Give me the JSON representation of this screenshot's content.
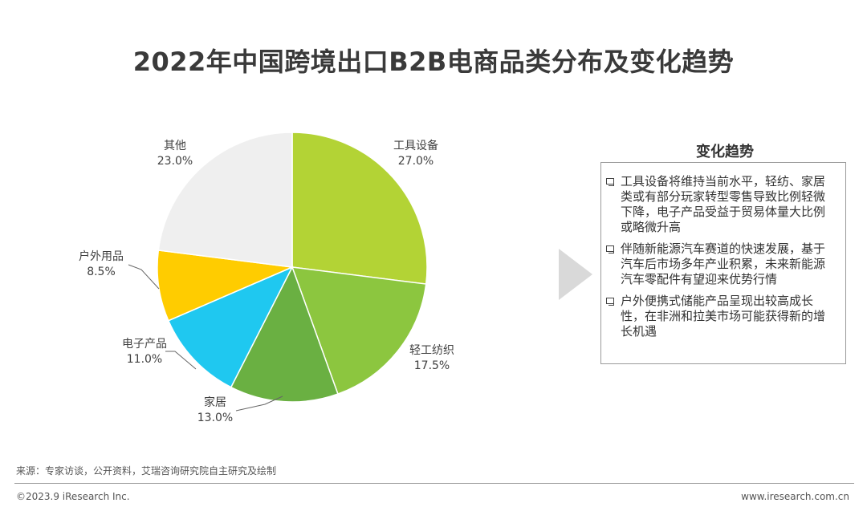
{
  "title": "2022年中国跨境出口B2B电商品类分布及变化趋势",
  "chart_data": {
    "type": "pie",
    "categories": [
      "工具设备",
      "轻工纺织",
      "家居",
      "电子产品",
      "户外用品",
      "其他"
    ],
    "values": [
      27.0,
      17.5,
      13.0,
      11.0,
      8.5,
      23.0
    ],
    "value_labels": [
      "27.0%",
      "17.5%",
      "13.0%",
      "11.0%",
      "8.5%",
      "23.0%"
    ],
    "colors": [
      "#B3D335",
      "#8CC63F",
      "#6AB042",
      "#1FC8F0",
      "#FFCC00",
      "#EFEFEF"
    ],
    "start_angle": "12 o'clock",
    "direction": "clockwise"
  },
  "trend_panel": {
    "title": "变化趋势",
    "items": [
      "工具设备将维持当前水平，轻纺、家居类或有部分玩家转型零售导致比例轻微下降，电子产品受益于贸易体量大比例或略微升高",
      "伴随新能源汽车赛道的快速发展，基于汽车后市场多年产业积累，未来新能源汽车零配件有望迎来优势行情",
      "户外便携式储能产品呈现出较高成长性，在非洲和拉美市场可能获得新的增长机遇"
    ]
  },
  "footer": {
    "source": "来源：专家访谈，公开资料，艾瑞咨询研究院自主研究及绘制",
    "copyright": "©2023.9 iResearch Inc.",
    "website": "www.iresearch.com.cn"
  }
}
